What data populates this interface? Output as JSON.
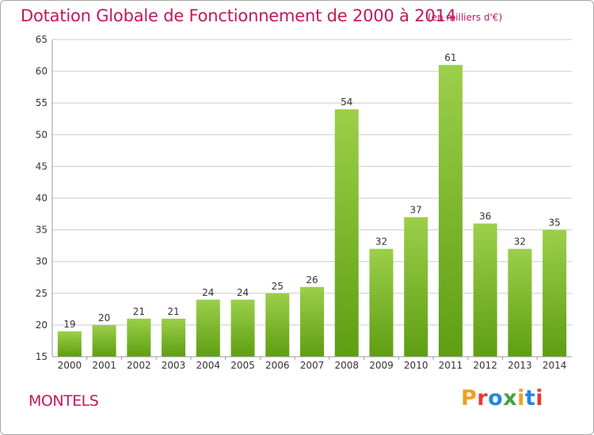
{
  "header": {
    "title": "Dotation Globale de Fonctionnement de 2000 à 2014",
    "unit": "(en milliers d'€)"
  },
  "footer": {
    "commune": "MONTELS",
    "logo_text": "Proxiti",
    "logo_colors": [
      "#f0a020",
      "#e53935",
      "#1e88e5",
      "#43a047",
      "#f0a020",
      "#1e88e5",
      "#e53935"
    ]
  },
  "chart_data": {
    "type": "bar",
    "title": "Dotation Globale de Fonctionnement de 2000 à 2014",
    "subtitle": "(en milliers d'€)",
    "categories": [
      "2000",
      "2001",
      "2002",
      "2003",
      "2004",
      "2005",
      "2006",
      "2007",
      "2008",
      "2009",
      "2010",
      "2011",
      "2012",
      "2013",
      "2014"
    ],
    "values": [
      19,
      20,
      21,
      21,
      24,
      24,
      25,
      26,
      54,
      32,
      37,
      61,
      36,
      32,
      35
    ],
    "ylim": [
      15,
      65
    ],
    "yticks": [
      15,
      20,
      25,
      30,
      35,
      40,
      45,
      50,
      55,
      60,
      65
    ],
    "grid": true,
    "bar_color_top": "#9ccf4a",
    "bar_color_bottom": "#5e9e12",
    "grid_color": "#cccccc"
  }
}
